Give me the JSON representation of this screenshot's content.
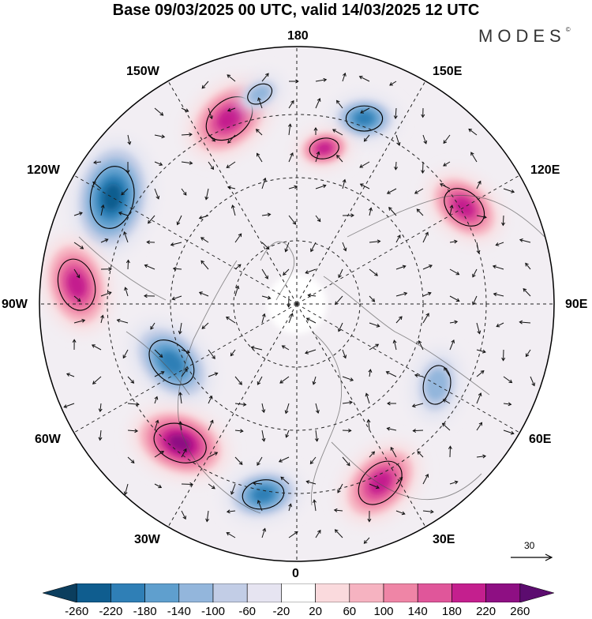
{
  "title": "Base 09/03/2025 00 UTC, valid 14/03/2025 12 UTC",
  "logo": "MODES",
  "logo_mark": "©",
  "longitude_labels": {
    "top": "180",
    "bottom": "0",
    "left": "90W",
    "right": "90E",
    "upper_left_1": "150W",
    "upper_left_2": "120W",
    "lower_left_1": "60W",
    "lower_left_2": "30W",
    "upper_right_1": "150E",
    "upper_right_2": "120E",
    "lower_right_1": "60E",
    "lower_right_2": "30E"
  },
  "reference_vector": {
    "label": "30"
  },
  "colorbar": {
    "ticks": [
      "-260",
      "-220",
      "-180",
      "-140",
      "-100",
      "-60",
      "-20",
      "20",
      "60",
      "100",
      "140",
      "180",
      "220",
      "260"
    ],
    "colors": [
      "#0b3e5e",
      "#0f5d8f",
      "#2f7fb6",
      "#5f9fce",
      "#93b6dc",
      "#c2cde6",
      "#e6e4f1",
      "#ffffff",
      "#fadadd",
      "#f6b3c1",
      "#ef85a6",
      "#e0569a",
      "#c41f8e",
      "#8e0f83",
      "#5c0c6f"
    ]
  },
  "map_features": {
    "projection": "north-polar-stereographic",
    "anomaly_centers": [
      {
        "lon_label": "160W",
        "sign": "positive",
        "strength": "strong"
      },
      {
        "lon_label": "120W",
        "sign": "negative",
        "strength": "very strong"
      },
      {
        "lon_label": "95W",
        "sign": "positive",
        "strength": "strong"
      },
      {
        "lon_label": "65W",
        "sign": "negative",
        "strength": "strong"
      },
      {
        "lon_label": "40W",
        "sign": "positive",
        "strength": "very strong"
      },
      {
        "lon_label": "10W",
        "sign": "negative",
        "strength": "strong"
      },
      {
        "lon_label": "25E",
        "sign": "positive",
        "strength": "strong"
      },
      {
        "lon_label": "60E",
        "sign": "negative",
        "strength": "moderate"
      },
      {
        "lon_label": "120E",
        "sign": "positive",
        "strength": "strong"
      },
      {
        "lon_label": "160E",
        "sign": "negative",
        "strength": "strong"
      },
      {
        "lon_label": "170E",
        "sign": "positive",
        "strength": "strong"
      },
      {
        "lon_label": "170W",
        "sign": "negative",
        "strength": "moderate"
      }
    ]
  }
}
